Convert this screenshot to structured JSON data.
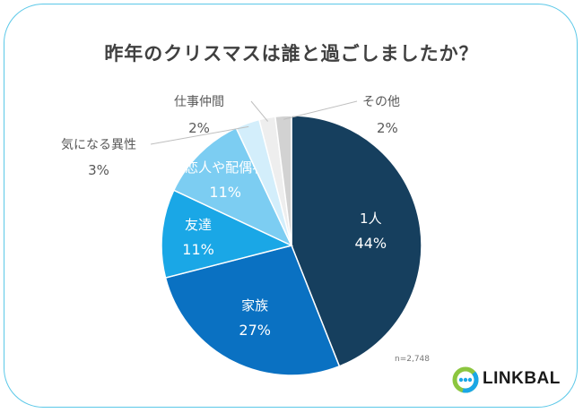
{
  "title": "昨年のクリスマスは誰と過ごしましたか？",
  "sample_note": "n=2,748",
  "brand": "LINKBAL",
  "chart_data": {
    "type": "pie",
    "slices": [
      {
        "label": "1人",
        "value": 44,
        "value_label": "44%",
        "color": "#163f5e",
        "label_position": "inside",
        "text_color": "#ffffff"
      },
      {
        "label": "家族",
        "value": 27,
        "value_label": "27%",
        "color": "#0a71c2",
        "label_position": "inside",
        "text_color": "#ffffff"
      },
      {
        "label": "友達",
        "value": 11,
        "value_label": "11%",
        "color": "#1aa7e6",
        "label_position": "inside",
        "text_color": "#ffffff"
      },
      {
        "label": "恋人や配偶者",
        "value": 11,
        "value_label": "11%",
        "color": "#7ccdf2",
        "label_position": "inside",
        "text_color": "#ffffff"
      },
      {
        "label": "気になる異性",
        "value": 3,
        "value_label": "3%",
        "color": "#d3eefb",
        "label_position": "outside",
        "text_color": "#595959"
      },
      {
        "label": "仕事仲間",
        "value": 2,
        "value_label": "2%",
        "color": "#eeeeee",
        "label_position": "outside",
        "text_color": "#595959"
      },
      {
        "label": "その他",
        "value": 2,
        "value_label": "2%",
        "color": "#d2d2d2",
        "label_position": "outside",
        "text_color": "#595959"
      }
    ]
  }
}
